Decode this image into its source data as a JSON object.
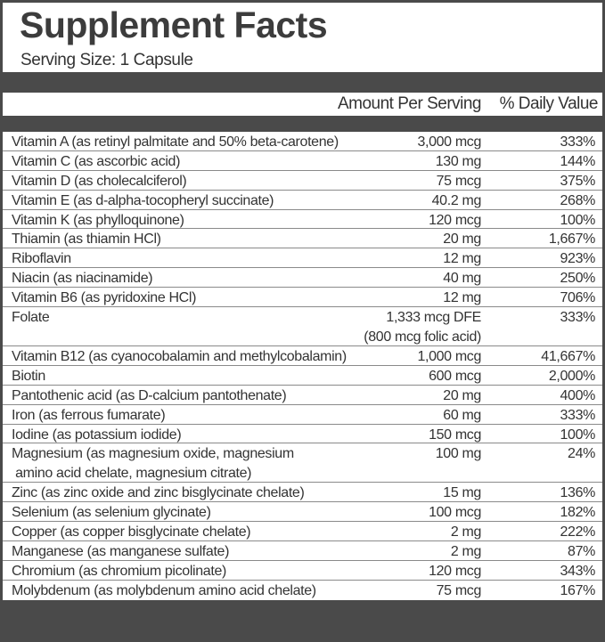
{
  "title": "Supplement Facts",
  "serving_size": "Serving Size: 1 Capsule",
  "header": {
    "amount": "Amount Per Serving",
    "dv": "% Daily Value"
  },
  "rows": [
    {
      "name": "Vitamin A (as retinyl palmitate and 50% beta-carotene)",
      "amount": "3,000 mcg",
      "dv": "333%"
    },
    {
      "name": "Vitamin C (as ascorbic acid)",
      "amount": "130 mg",
      "dv": "144%"
    },
    {
      "name": "Vitamin D (as cholecalciferol)",
      "amount": "75 mcg",
      "dv": "375%"
    },
    {
      "name": "Vitamin E (as d-alpha-tocopheryl succinate)",
      "amount": "40.2 mg",
      "dv": "268%"
    },
    {
      "name": "Vitamin K (as phylloquinone)",
      "amount": "120 mcg",
      "dv": "100%"
    },
    {
      "name": "Thiamin (as thiamin HCl)",
      "amount": "20 mg",
      "dv": "1,667%"
    },
    {
      "name": "Riboflavin",
      "amount": "12 mg",
      "dv": "923%"
    },
    {
      "name": "Niacin (as niacinamide)",
      "amount": "40 mg",
      "dv": "250%"
    },
    {
      "name": "Vitamin B6 (as pyridoxine HCl)",
      "amount": "12 mg",
      "dv": "706%"
    },
    {
      "name": "Folate",
      "name2": "",
      "amount": "1,333 mcg DFE",
      "amount2": "(800 mcg folic acid)",
      "dv": "333%"
    },
    {
      "name": "Vitamin B12 (as cyanocobalamin and methylcobalamin)",
      "amount": "1,000 mcg",
      "dv": "41,667%"
    },
    {
      "name": "Biotin",
      "amount": "600 mcg",
      "dv": "2,000%"
    },
    {
      "name": "Pantothenic acid (as D-calcium pantothenate)",
      "amount": "20 mg",
      "dv": "400%"
    },
    {
      "name": "Iron (as ferrous fumarate)",
      "amount": "60 mg",
      "dv": "333%"
    },
    {
      "name": "Iodine (as potassium iodide)",
      "amount": "150 mcg",
      "dv": "100%"
    },
    {
      "name": "Magnesium (as magnesium oxide, magnesium",
      "name2": " amino acid chelate, magnesium citrate)",
      "amount": "100 mg",
      "amount2": "",
      "dv": "24%"
    },
    {
      "name": "Zinc (as zinc oxide and zinc bisglycinate chelate)",
      "amount": "15 mg",
      "dv": "136%"
    },
    {
      "name": "Selenium (as selenium glycinate)",
      "amount": "100 mcg",
      "dv": "182%"
    },
    {
      "name": "Copper (as copper bisglycinate chelate)",
      "amount": "2 mg",
      "dv": "222%"
    },
    {
      "name": "Manganese (as manganese sulfate)",
      "amount": "2 mg",
      "dv": "87%"
    },
    {
      "name": "Chromium (as chromium picolinate)",
      "amount": "120 mcg",
      "dv": "343%"
    },
    {
      "name": "Molybdenum (as molybdenum amino acid chelate)",
      "amount": "75 mcg",
      "dv": "167%"
    }
  ]
}
